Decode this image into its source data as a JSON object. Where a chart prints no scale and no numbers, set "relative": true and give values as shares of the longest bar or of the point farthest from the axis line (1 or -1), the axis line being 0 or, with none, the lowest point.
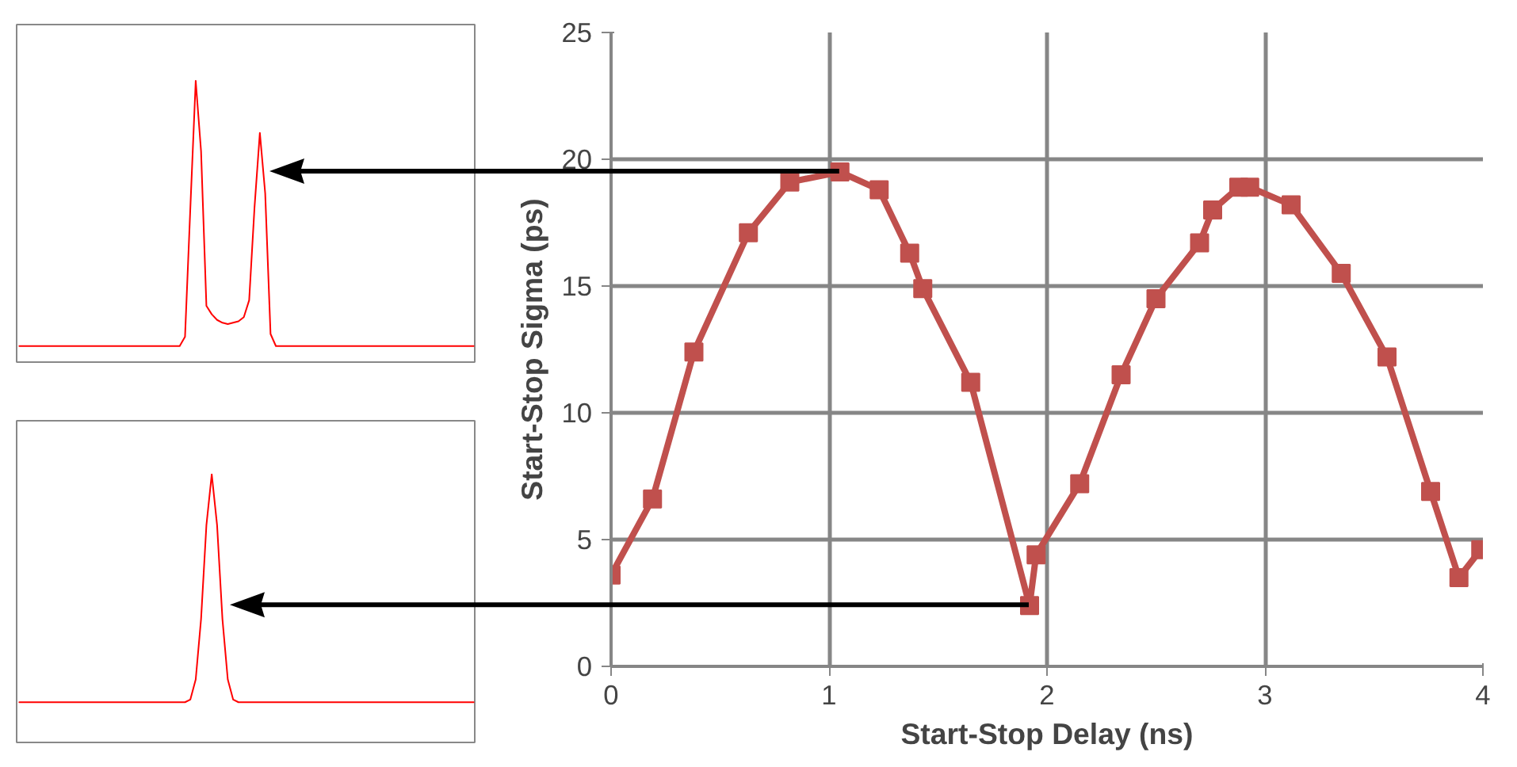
{
  "chart_data": [
    {
      "type": "line",
      "relative": true,
      "grid": false,
      "marker": "none",
      "categories": [
        null,
        null,
        null,
        null,
        null,
        null,
        null,
        null,
        null,
        null,
        null,
        null,
        null,
        null,
        null,
        null,
        null,
        null,
        null,
        null,
        null,
        null,
        null,
        null,
        null,
        null,
        null,
        null,
        null,
        null,
        null,
        null,
        null,
        null,
        null,
        null,
        null,
        null,
        null,
        null,
        null,
        null,
        null,
        null,
        null,
        null,
        null,
        null,
        null,
        null,
        null,
        null,
        null,
        null,
        null,
        null,
        null,
        null,
        null,
        null,
        null,
        null,
        null,
        null,
        null,
        null,
        null,
        null,
        null,
        null,
        null,
        null,
        null,
        null,
        null,
        null,
        null,
        null,
        null,
        null,
        null,
        null,
        null,
        null,
        null,
        null
      ],
      "series": [
        {
          "color": "#ff0000",
          "values": [
            0.057,
            0.057,
            0.057,
            0.057,
            0.057,
            0.057,
            0.057,
            0.057,
            0.057,
            0.057,
            0.057,
            0.057,
            0.057,
            0.057,
            0.057,
            0.057,
            0.057,
            0.057,
            0.057,
            0.057,
            0.057,
            0.057,
            0.057,
            0.057,
            0.057,
            0.057,
            0.057,
            0.057,
            0.057,
            0.057,
            0.057,
            0.09,
            0.55,
            1.0,
            0.75,
            0.2,
            0.17,
            0.15,
            0.14,
            0.135,
            0.14,
            0.145,
            0.16,
            0.22,
            0.55,
            0.815,
            0.6,
            0.1,
            0.057,
            0.057,
            0.057,
            0.057,
            0.057,
            0.057,
            0.057,
            0.057,
            0.057,
            0.057,
            0.057,
            0.057,
            0.057,
            0.057,
            0.057,
            0.057,
            0.057,
            0.057,
            0.057,
            0.057,
            0.057,
            0.057,
            0.057,
            0.057,
            0.057,
            0.057,
            0.057,
            0.057,
            0.057,
            0.057,
            0.057,
            0.057,
            0.057,
            0.057,
            0.057,
            0.057,
            0.057,
            0.057
          ]
        }
      ]
    },
    {
      "type": "line",
      "relative": true,
      "grid": false,
      "marker": "none",
      "categories": [
        null,
        null,
        null,
        null,
        null,
        null,
        null,
        null,
        null,
        null,
        null,
        null,
        null,
        null,
        null,
        null,
        null,
        null,
        null,
        null,
        null,
        null,
        null,
        null,
        null,
        null,
        null,
        null,
        null,
        null,
        null,
        null,
        null,
        null,
        null,
        null,
        null,
        null,
        null,
        null,
        null,
        null,
        null,
        null,
        null,
        null,
        null,
        null,
        null,
        null,
        null,
        null,
        null,
        null,
        null,
        null,
        null,
        null,
        null,
        null,
        null,
        null,
        null,
        null,
        null,
        null,
        null,
        null,
        null,
        null,
        null,
        null,
        null,
        null,
        null,
        null,
        null,
        null,
        null,
        null,
        null,
        null,
        null,
        null,
        null,
        null
      ],
      "series": [
        {
          "color": "#ff0000",
          "values": [
            0.15,
            0.15,
            0.15,
            0.15,
            0.15,
            0.15,
            0.15,
            0.15,
            0.15,
            0.15,
            0.15,
            0.15,
            0.15,
            0.15,
            0.15,
            0.15,
            0.15,
            0.15,
            0.15,
            0.15,
            0.15,
            0.15,
            0.15,
            0.15,
            0.15,
            0.15,
            0.15,
            0.15,
            0.15,
            0.15,
            0.15,
            0.15,
            0.16,
            0.235,
            0.46,
            0.81,
            1.0,
            0.81,
            0.46,
            0.235,
            0.16,
            0.15,
            0.15,
            0.15,
            0.15,
            0.15,
            0.15,
            0.15,
            0.15,
            0.15,
            0.15,
            0.15,
            0.15,
            0.15,
            0.15,
            0.15,
            0.15,
            0.15,
            0.15,
            0.15,
            0.15,
            0.15,
            0.15,
            0.15,
            0.15,
            0.15,
            0.15,
            0.15,
            0.15,
            0.15,
            0.15,
            0.15,
            0.15,
            0.15,
            0.15,
            0.15,
            0.15,
            0.15,
            0.15,
            0.15,
            0.15,
            0.15,
            0.15,
            0.15,
            0.15,
            0.15
          ]
        }
      ]
    },
    {
      "type": "line",
      "xlabel": "Start-Stop Delay (ns)",
      "ylabel": "Start-Stop Sigma (ps)",
      "xlim": [
        0,
        4
      ],
      "xticks": [
        0,
        1,
        2,
        3,
        4
      ],
      "ylim": [
        0,
        25
      ],
      "yticks": [
        0,
        5,
        10,
        15,
        20,
        25
      ],
      "grid": true,
      "marker": "square",
      "line_style": "solid",
      "x": [
        0,
        0.19,
        0.38,
        0.63,
        0.82,
        1.05,
        1.23,
        1.37,
        1.43,
        1.65,
        1.92,
        1.95,
        2.15,
        2.34,
        2.5,
        2.7,
        2.76,
        2.88,
        2.93,
        3.12,
        3.35,
        3.56,
        3.76,
        3.89,
        3.99
      ],
      "series": [
        {
          "color": "#c0504d",
          "values": [
            3.6,
            6.6,
            12.4,
            17.1,
            19.1,
            19.5,
            18.8,
            16.3,
            14.9,
            11.2,
            2.4,
            4.4,
            7.2,
            11.5,
            14.5,
            16.7,
            18.0,
            18.9,
            18.9,
            18.2,
            15.5,
            12.2,
            6.9,
            3.5,
            4.6
          ]
        }
      ]
    }
  ]
}
